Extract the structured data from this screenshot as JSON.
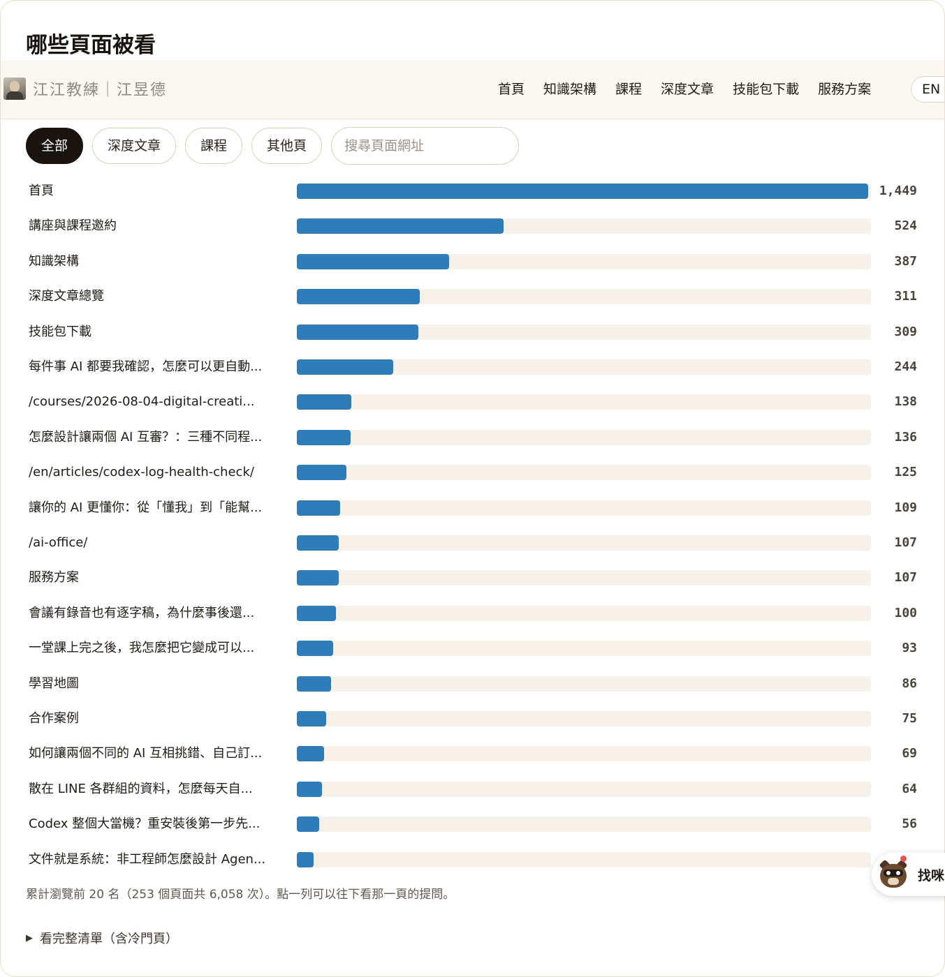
{
  "page_title": "哪些頁面被看",
  "site": {
    "brand": "江江教練｜江昱德",
    "nav": [
      "首頁",
      "知識架構",
      "課程",
      "深度文章",
      "技能包下載",
      "服務方案"
    ],
    "lang": "EN"
  },
  "filters": {
    "chips": [
      "全部",
      "深度文章",
      "課程",
      "其他頁"
    ],
    "active_index": 0,
    "search_placeholder": "搜尋頁面網址"
  },
  "accent_color": "#2e7cb8",
  "chart_data": {
    "type": "bar",
    "orientation": "horizontal",
    "max": 1449,
    "categories": [
      "首頁",
      "講座與課程邀約",
      "知識架構",
      "深度文章總覽",
      "技能包下載",
      "每件事 AI 都要我確認，怎麼可以更自動...",
      "/courses/2026-08-04-digital-creati...",
      "怎麼設計讓兩個 AI 互審？：三種不同程...",
      "/en/articles/codex-log-health-check/",
      "讓你的 AI 更懂你：從「懂我」到「能幫...",
      "/ai-office/",
      "服務方案",
      "會議有錄音也有逐字稿，為什麼事後還...",
      "一堂課上完之後，我怎麼把它變成可以...",
      "學習地圖",
      "合作案例",
      "如何讓兩個不同的 AI 互相挑錯、自己訂...",
      "散在 LINE 各群組的資料，怎麼每天自...",
      "Codex 整個大當機？重安裝後第一步先...",
      "文件就是系統：非工程師怎麼設計 Agen..."
    ],
    "values": [
      1449,
      524,
      387,
      311,
      309,
      244,
      138,
      136,
      125,
      109,
      107,
      107,
      100,
      93,
      86,
      75,
      69,
      64,
      56,
      15
    ],
    "value_labels": [
      "1,449",
      "524",
      "387",
      "311",
      "309",
      "244",
      "138",
      "136",
      "125",
      "109",
      "107",
      "107",
      "100",
      "93",
      "86",
      "75",
      "69",
      "64",
      "56",
      ""
    ]
  },
  "summary": "累計瀏覽前 20 名（253 個頁面共 6,058 次）。點一列可以往下看那一頁的提問。",
  "details_toggle": "看完整清單（含冷門頁）",
  "helper": {
    "label": "找咪"
  }
}
